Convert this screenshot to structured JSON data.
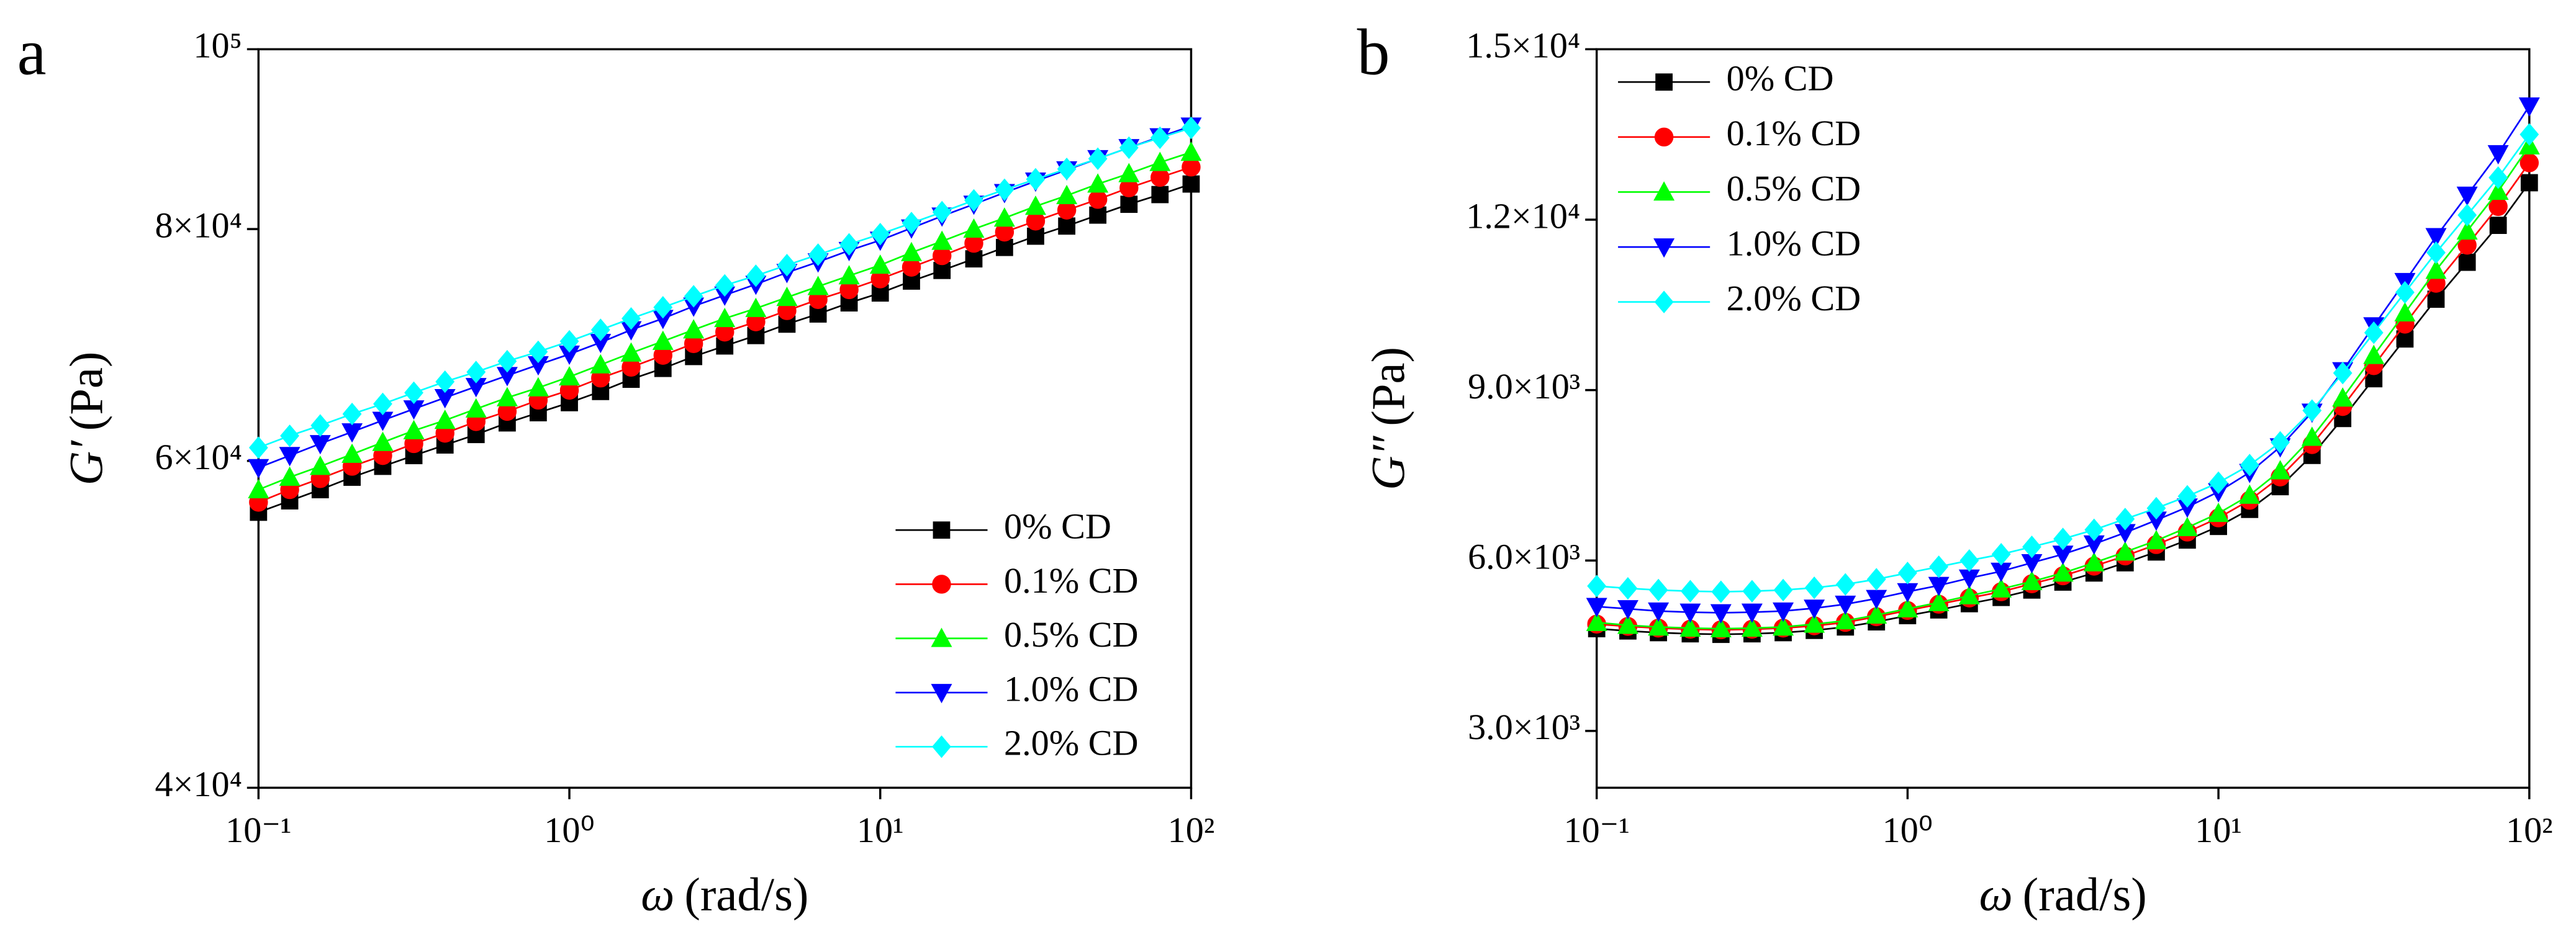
{
  "chart_data": [
    {
      "type": "line",
      "panel": "a",
      "xlabel_symbol": "ω",
      "xlabel_unit": "(rad/s)",
      "ylabel_symbol": "G′",
      "ylabel_unit": "(Pa)",
      "xscale": "log",
      "yscale": "log",
      "legend": "lower right",
      "xlim": [
        0.1,
        100
      ],
      "xticks": [
        {
          "value": 0.1,
          "label": "10⁻¹"
        },
        {
          "value": 1,
          "label": "10⁰"
        },
        {
          "value": 10,
          "label": "10¹"
        },
        {
          "value": 100,
          "label": "10²"
        }
      ],
      "ylim": [
        40000,
        100000
      ],
      "yticks": [
        {
          "value": 40000,
          "label": "4×10⁴"
        },
        {
          "value": 60000,
          "label": "6×10⁴"
        },
        {
          "value": 80000,
          "label": "8×10⁴"
        },
        {
          "value": 100000,
          "label": "10⁵"
        }
      ],
      "x": [
        0.1,
        0.126,
        0.158,
        0.2,
        0.251,
        0.316,
        0.398,
        0.501,
        0.631,
        0.794,
        1,
        1.26,
        1.58,
        2,
        2.51,
        3.16,
        3.98,
        5.01,
        6.31,
        7.94,
        10,
        12.6,
        15.8,
        20,
        25.1,
        31.6,
        39.8,
        50.1,
        63.1,
        79.4,
        100
      ],
      "series": [
        {
          "name": "0% CD",
          "color": "#000000",
          "marker": "square",
          "values": [
            56300,
            57100,
            57900,
            58800,
            59600,
            60400,
            61200,
            62000,
            62900,
            63700,
            64500,
            65400,
            66400,
            67300,
            68300,
            69200,
            70100,
            71100,
            72000,
            73000,
            73900,
            75000,
            76000,
            77100,
            78200,
            79300,
            80300,
            81400,
            82500,
            83500,
            84600
          ]
        },
        {
          "name": "0.1% CD",
          "color": "#ff0000",
          "marker": "circle",
          "values": [
            57000,
            57900,
            58700,
            59600,
            60400,
            61300,
            62100,
            63000,
            63800,
            64700,
            65500,
            66500,
            67400,
            68400,
            69400,
            70400,
            71300,
            72300,
            73300,
            74200,
            75200,
            76300,
            77400,
            78600,
            79700,
            80800,
            81900,
            83000,
            84200,
            85300,
            86400
          ]
        },
        {
          "name": "0.5% CD",
          "color": "#00ff00",
          "marker": "triangle-up",
          "values": [
            57900,
            58800,
            59600,
            60500,
            61400,
            62300,
            63100,
            64000,
            64900,
            65700,
            66600,
            67600,
            68600,
            69600,
            70600,
            71600,
            72500,
            73500,
            74500,
            75500,
            76500,
            77700,
            78800,
            80000,
            81100,
            82300,
            83400,
            84600,
            85700,
            86900,
            88000
          ]
        },
        {
          "name": "1.0% CD",
          "color": "#0000ff",
          "marker": "triangle-down",
          "values": [
            59500,
            60400,
            61300,
            62200,
            63100,
            64000,
            64900,
            65800,
            66700,
            67600,
            68500,
            69500,
            70600,
            71600,
            72700,
            73700,
            74700,
            75800,
            76800,
            77900,
            78900,
            80100,
            81300,
            82500,
            83700,
            84900,
            86100,
            87300,
            88500,
            89700,
            90900
          ]
        },
        {
          "name": "2.0% CD",
          "color": "#00ffff",
          "marker": "diamond",
          "values": [
            61000,
            61900,
            62700,
            63600,
            64400,
            65300,
            66200,
            67000,
            67900,
            68700,
            69600,
            70600,
            71600,
            72600,
            73600,
            74600,
            75500,
            76500,
            77500,
            78500,
            79500,
            80600,
            81700,
            82900,
            84000,
            85100,
            86200,
            87300,
            88500,
            89600,
            90700
          ]
        }
      ]
    },
    {
      "type": "line",
      "panel": "b",
      "xlabel_symbol": "ω",
      "xlabel_unit": "(rad/s)",
      "ylabel_symbol": "G″",
      "ylabel_unit": "(Pa)",
      "xscale": "log",
      "yscale": "linear",
      "legend": "upper left",
      "xlim": [
        0.1,
        100
      ],
      "xticks": [
        {
          "value": 0.1,
          "label": "10⁻¹"
        },
        {
          "value": 1,
          "label": "10⁰"
        },
        {
          "value": 10,
          "label": "10¹"
        },
        {
          "value": 100,
          "label": "10²"
        }
      ],
      "ylim": [
        2000,
        15000
      ],
      "yticks": [
        {
          "value": 3000,
          "label": "3.0×10³"
        },
        {
          "value": 6000,
          "label": "6.0×10³"
        },
        {
          "value": 9000,
          "label": "9.0×10³"
        },
        {
          "value": 12000,
          "label": "1.2×10⁴"
        },
        {
          "value": 15000,
          "label": "1.5×10⁴"
        }
      ],
      "x": [
        0.1,
        0.126,
        0.158,
        0.2,
        0.251,
        0.316,
        0.398,
        0.501,
        0.631,
        0.794,
        1,
        1.26,
        1.58,
        2,
        2.51,
        3.16,
        3.98,
        5.01,
        6.31,
        7.94,
        10,
        12.6,
        15.8,
        20,
        25.1,
        31.6,
        39.8,
        50.1,
        63.1,
        79.4,
        100
      ],
      "series": [
        {
          "name": "0% CD",
          "color": "#000000",
          "marker": "square",
          "values": [
            4800,
            4760,
            4730,
            4710,
            4700,
            4710,
            4730,
            4770,
            4830,
            4920,
            5030,
            5130,
            5240,
            5350,
            5480,
            5620,
            5780,
            5960,
            6150,
            6360,
            6600,
            6900,
            7300,
            7850,
            8500,
            9200,
            9900,
            10600,
            11250,
            11900,
            12650
          ]
        },
        {
          "name": "0.1% CD",
          "color": "#ff0000",
          "marker": "circle",
          "values": [
            4880,
            4840,
            4810,
            4790,
            4780,
            4790,
            4810,
            4850,
            4910,
            5010,
            5120,
            5230,
            5340,
            5450,
            5590,
            5730,
            5900,
            6080,
            6280,
            6500,
            6750,
            7060,
            7470,
            8040,
            8710,
            9430,
            10160,
            10880,
            11550,
            12230,
            13000
          ]
        },
        {
          "name": "0.5% CD",
          "color": "#00ff00",
          "marker": "triangle-up",
          "values": [
            4910,
            4860,
            4830,
            4810,
            4800,
            4810,
            4830,
            4880,
            4940,
            5040,
            5150,
            5260,
            5380,
            5500,
            5630,
            5780,
            5960,
            6150,
            6350,
            6580,
            6830,
            7150,
            7580,
            8170,
            8860,
            9610,
            10360,
            11110,
            11800,
            12500,
            13300
          ]
        },
        {
          "name": "1.0% CD",
          "color": "#0000ff",
          "marker": "triangle-down",
          "values": [
            5190,
            5150,
            5110,
            5090,
            5080,
            5090,
            5110,
            5160,
            5230,
            5330,
            5450,
            5560,
            5690,
            5810,
            5960,
            6110,
            6290,
            6490,
            6710,
            6940,
            7210,
            7550,
            8000,
            8610,
            9340,
            10130,
            10910,
            11700,
            12430,
            13160,
            14000
          ]
        },
        {
          "name": "2.0% CD",
          "color": "#00ffff",
          "marker": "diamond",
          "values": [
            5550,
            5510,
            5480,
            5460,
            5450,
            5460,
            5480,
            5520,
            5580,
            5670,
            5780,
            5890,
            6000,
            6110,
            6240,
            6380,
            6540,
            6730,
            6920,
            7130,
            7370,
            7680,
            8080,
            8640,
            9300,
            10010,
            10720,
            11420,
            12080,
            12740,
            13500
          ]
        }
      ]
    }
  ]
}
